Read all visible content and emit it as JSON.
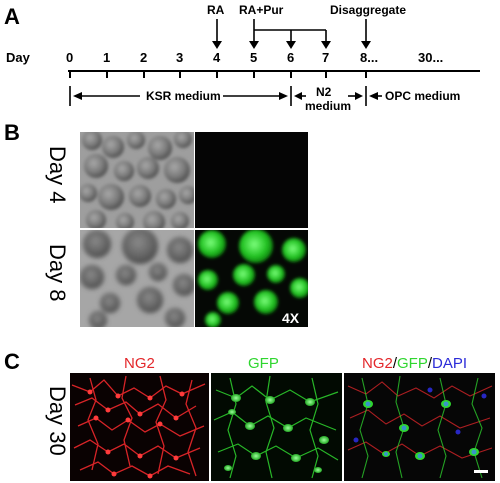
{
  "panels": {
    "a": "A",
    "b": "B",
    "c": "C"
  },
  "timeline": {
    "day_label": "Day",
    "days": [
      "0",
      "1",
      "2",
      "3",
      "4",
      "5",
      "6",
      "7",
      "8...",
      "30..."
    ],
    "events": {
      "ra": "RA",
      "ra_pur": "RA+Pur",
      "disaggregate": "Disaggregate"
    },
    "media": {
      "ksr": "KSR medium",
      "n2_line1": "N2",
      "n2_line2": "medium",
      "opc": "OPC medium"
    }
  },
  "panel_b": {
    "row1": "Day 4",
    "row2": "Day 8",
    "magnification": "4X"
  },
  "panel_c": {
    "row": "Day 30",
    "col1": "NG2",
    "col2": "GFP",
    "col3_part1": "NG2",
    "col3_sep1": "/",
    "col3_part2": "GFP",
    "col3_sep2": "/",
    "col3_part3": "DAPI"
  },
  "colors": {
    "ng2": "#e3262a",
    "gfp": "#2fd62f",
    "dapi": "#2b2bd8"
  }
}
